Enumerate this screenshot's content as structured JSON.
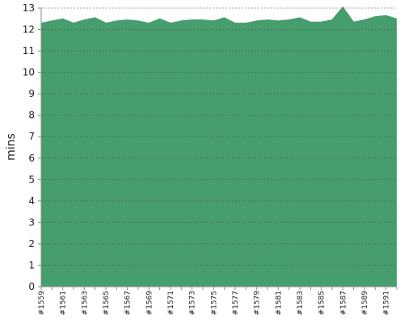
{
  "chart_data": {
    "type": "area",
    "ylabel": "mins",
    "categories": [
      "#1559",
      null,
      "#1561",
      null,
      "#1563",
      null,
      "#1565",
      null,
      "#1567",
      null,
      "#1569",
      null,
      "#1571",
      null,
      "#1573",
      null,
      "#1575",
      null,
      "#1577",
      null,
      "#1579",
      null,
      "#1581",
      null,
      "#1583",
      null,
      "#1585",
      null,
      "#1587",
      null,
      "#1589",
      null,
      "#1591",
      null
    ],
    "values": [
      12.3,
      12.4,
      12.5,
      12.3,
      12.45,
      12.55,
      12.3,
      12.4,
      12.45,
      12.4,
      12.3,
      12.5,
      12.3,
      12.4,
      12.45,
      12.45,
      12.4,
      12.55,
      12.3,
      12.3,
      12.4,
      12.45,
      12.4,
      12.45,
      12.55,
      12.35,
      12.35,
      12.45,
      13.05,
      12.35,
      12.45,
      12.6,
      12.65,
      12.5
    ],
    "color": "#469e6c",
    "ylim": [
      0,
      13
    ],
    "yticks": [
      0,
      1,
      2,
      3,
      4,
      5,
      6,
      7,
      8,
      9,
      10,
      11,
      12,
      13
    ],
    "grid": true
  }
}
